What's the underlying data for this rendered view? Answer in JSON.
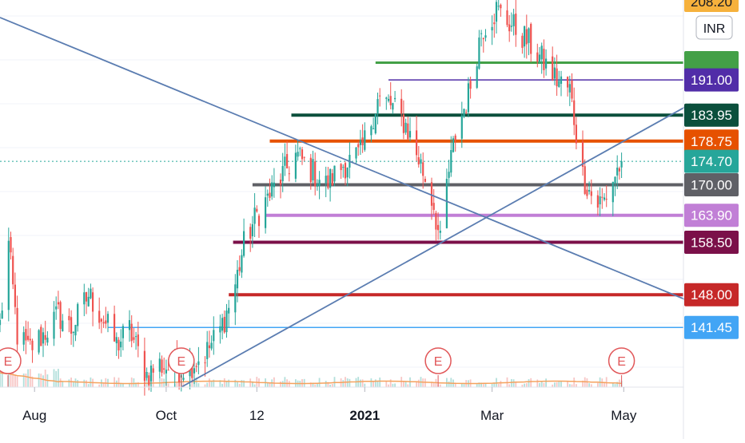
{
  "chart_data": {
    "type": "candlestick",
    "title": "",
    "currency": "INR",
    "colors": {
      "up": "#26a69a",
      "down": "#ef5350",
      "volume_up": "#b2dfdb",
      "volume_down": "#f7c6c5",
      "volume_ma": "#f5a25d",
      "trendline": "#5b7db1",
      "last_price_line": "#26a69a",
      "axis_text": "#131722",
      "earnings": "#e15759"
    },
    "x_axis": {
      "ticks": [
        "Aug",
        "Oct",
        "12",
        "2021",
        "Mar",
        "May"
      ],
      "bold_ticks": [
        "2021"
      ],
      "approx_range": [
        "2020-07-16",
        "2021-06-01"
      ]
    },
    "y_axis": {
      "range": [
        129.5,
        207.0
      ],
      "top_partial_label": "208.20",
      "currency_badge": "INR"
    },
    "last_price": 174.7,
    "price_levels": [
      {
        "name": "level-partial",
        "price": 194.45,
        "label": "",
        "color": "#43a047",
        "from": "2021-01-06",
        "to": "2021-06-01",
        "width": 3
      },
      {
        "name": "level-191",
        "price": 191.0,
        "label": "191.00",
        "color": "#512da8",
        "from": "2021-01-12",
        "to": "2021-06-01",
        "width": 1.5
      },
      {
        "name": "level-183-95",
        "price": 183.95,
        "label": "183.95",
        "color": "#0b4f3c",
        "from": "2020-11-28",
        "to": "2021-06-01",
        "width": 4
      },
      {
        "name": "level-178-75",
        "price": 178.75,
        "label": "178.75",
        "color": "#e65100",
        "from": "2020-11-18",
        "to": "2021-06-01",
        "width": 4
      },
      {
        "name": "level-174-70",
        "price": 174.7,
        "label": "174.70",
        "color": "#26a69a",
        "from": "2020-07-16",
        "to": "2021-06-01",
        "width": 1,
        "dotted": true
      },
      {
        "name": "level-170",
        "price": 170.0,
        "label": "170.00",
        "color": "#5f6066",
        "from": "2020-11-10",
        "to": "2021-06-01",
        "width": 4
      },
      {
        "name": "level-163-90",
        "price": 163.9,
        "label": "163.90",
        "color": "#c17fd6",
        "from": "2020-11-16",
        "to": "2021-06-01",
        "width": 4
      },
      {
        "name": "level-158-50",
        "price": 158.5,
        "label": "158.50",
        "color": "#7b1049",
        "from": "2020-11-01",
        "to": "2021-06-01",
        "width": 4
      },
      {
        "name": "level-148",
        "price": 148.0,
        "label": "148.00",
        "color": "#c62828",
        "from": "2020-10-30",
        "to": "2021-06-01",
        "width": 4
      },
      {
        "name": "level-141-45",
        "price": 141.45,
        "label": "141.45",
        "color": "#42a5f5",
        "from": "2020-09-04",
        "to": "2021-06-01",
        "width": 1.5
      }
    ],
    "trendlines": [
      {
        "name": "downtrend-line",
        "points": [
          [
            "2020-07-16",
            203.5
          ],
          [
            "2021-06-01",
            146.6
          ]
        ]
      },
      {
        "name": "uptrend-line",
        "points": [
          [
            "2020-10-08",
            129.5
          ],
          [
            "2021-06-01",
            186.2
          ]
        ]
      }
    ],
    "earnings_markers": [
      "2020-07-17",
      "2020-10-08",
      "2021-02-04",
      "2021-04-30"
    ],
    "earnings_label": "E",
    "anchors": [
      [
        "2020-07-16",
        142
      ],
      [
        "2020-07-20",
        158
      ],
      [
        "2020-07-24",
        140
      ],
      [
        "2020-07-29",
        137
      ],
      [
        "2020-08-05",
        140
      ],
      [
        "2020-08-12",
        144
      ],
      [
        "2020-08-18",
        141
      ],
      [
        "2020-08-26",
        148
      ],
      [
        "2020-09-02",
        143
      ],
      [
        "2020-09-08",
        138
      ],
      [
        "2020-09-14",
        141
      ],
      [
        "2020-09-22",
        132
      ],
      [
        "2020-09-28",
        134
      ],
      [
        "2020-10-05",
        133
      ],
      [
        "2020-10-12",
        134
      ],
      [
        "2020-10-19",
        136
      ],
      [
        "2020-10-26",
        141
      ],
      [
        "2020-11-01",
        148
      ],
      [
        "2020-11-06",
        158
      ],
      [
        "2020-11-12",
        164
      ],
      [
        "2020-11-18",
        168
      ],
      [
        "2020-11-24",
        172
      ],
      [
        "2020-11-30",
        176
      ],
      [
        "2020-12-07",
        173
      ],
      [
        "2020-12-14",
        170
      ],
      [
        "2020-12-22",
        174
      ],
      [
        "2020-12-30",
        176
      ],
      [
        "2021-01-07",
        187
      ],
      [
        "2021-01-13",
        186
      ],
      [
        "2021-01-20",
        182
      ],
      [
        "2021-01-27",
        174
      ],
      [
        "2021-02-02",
        166
      ],
      [
        "2021-02-05",
        158
      ],
      [
        "2021-02-08",
        170
      ],
      [
        "2021-02-12",
        180
      ],
      [
        "2021-02-18",
        188
      ],
      [
        "2021-02-24",
        201
      ],
      [
        "2021-03-03",
        205
      ],
      [
        "2021-03-10",
        202
      ],
      [
        "2021-03-17",
        199
      ],
      [
        "2021-03-24",
        195
      ],
      [
        "2021-03-31",
        191
      ],
      [
        "2021-04-06",
        189
      ],
      [
        "2021-04-12",
        172
      ],
      [
        "2021-04-18",
        166
      ],
      [
        "2021-04-22",
        167
      ],
      [
        "2021-04-27",
        172
      ],
      [
        "2021-04-30",
        174.7
      ]
    ]
  }
}
